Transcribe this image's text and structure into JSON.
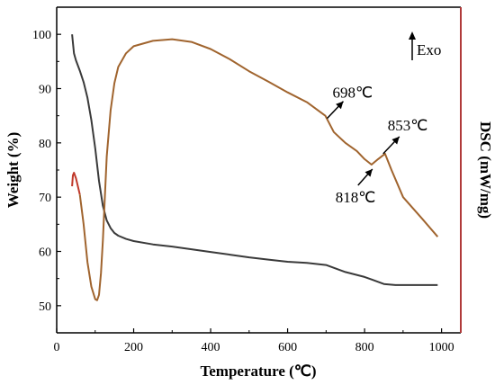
{
  "chart_data": {
    "type": "line",
    "xlabel": "Temperature (℃)",
    "ylabel_left": "Weight (%)",
    "ylabel_right": "DSC (mW/mg)",
    "xlim": [
      0,
      1050
    ],
    "ylim": [
      45,
      105
    ],
    "xticks": [
      0,
      200,
      400,
      600,
      800,
      1000
    ],
    "yticks_left": [
      50,
      60,
      70,
      80,
      90,
      100
    ],
    "grid": false,
    "colors": {
      "weight": "#3a3a3a",
      "dsc": "#a0642e",
      "dsc_start": "#c0392b",
      "right_axis": "#b03a3a"
    },
    "series": [
      {
        "axis": "left",
        "x": [
          40,
          45,
          50,
          60,
          70,
          80,
          90,
          100,
          110,
          120,
          130,
          140,
          150,
          160,
          180,
          200,
          250,
          300,
          350,
          400,
          450,
          500,
          550,
          600,
          650,
          700,
          750,
          800,
          820,
          850,
          880,
          900,
          950,
          990
        ],
        "values": [
          100,
          96.5,
          95.2,
          93.3,
          91.2,
          88.3,
          84.2,
          79.0,
          73.0,
          68.4,
          65.7,
          64.3,
          63.4,
          62.9,
          62.3,
          61.9,
          61.3,
          60.9,
          60.4,
          59.9,
          59.4,
          58.9,
          58.5,
          58.1,
          57.9,
          57.5,
          56.2,
          55.3,
          54.8,
          54.0,
          53.8,
          53.8,
          53.8,
          53.8
        ]
      },
      {
        "axis": "right",
        "x": [
          40,
          42,
          45,
          50,
          60,
          70,
          80,
          90,
          100,
          105,
          110,
          115,
          120,
          125,
          130,
          140,
          150,
          160,
          180,
          200,
          250,
          300,
          350,
          400,
          450,
          500,
          550,
          600,
          650,
          698,
          720,
          750,
          780,
          800,
          818,
          835,
          853,
          870,
          900,
          950,
          990
        ],
        "values": [
          72.0,
          74.0,
          74.5,
          73.5,
          70.5,
          65.0,
          58.0,
          53.5,
          51.2,
          51.0,
          52.0,
          56.0,
          62.0,
          70.0,
          77.5,
          86.0,
          91.0,
          94.0,
          96.5,
          97.8,
          98.8,
          99.1,
          98.6,
          97.3,
          95.4,
          93.2,
          91.3,
          89.3,
          87.5,
          85.0,
          82.0,
          80.0,
          78.5,
          77.0,
          76.0,
          77.0,
          78.0,
          75.0,
          70.0,
          66.0,
          62.7
        ]
      }
    ],
    "annotations": [
      {
        "text": "698℃",
        "x": 698,
        "y": 85.0
      },
      {
        "text": "853℃",
        "x": 853,
        "y": 78.0
      },
      {
        "text": "818℃",
        "x": 818,
        "y": 76.0
      }
    ],
    "exo_label": "Exo"
  }
}
